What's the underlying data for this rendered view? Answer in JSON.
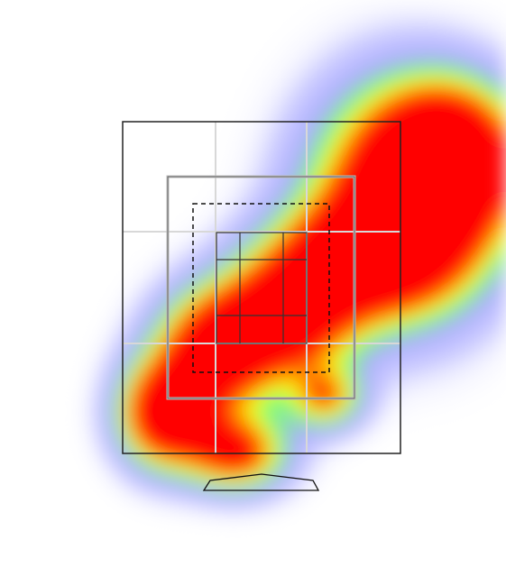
{
  "chart_data": {
    "type": "heatmap",
    "title": "",
    "xlabel": "",
    "ylabel": "",
    "color_scale": [
      "#ffffff",
      "#b8b8ff",
      "#7cff7c",
      "#ffff00",
      "#ff8800",
      "#ff0000"
    ],
    "description_of_regions": "strike zone",
    "blobs": [
      {
        "cx": 0.78,
        "cy": 0.55,
        "rx": 0.62,
        "ry": 0.85,
        "w": 1.0
      },
      {
        "cx": 1.05,
        "cy": 0.8,
        "rx": 0.45,
        "ry": 0.55,
        "w": 1.0
      },
      {
        "cx": 0.55,
        "cy": 0.2,
        "rx": 0.55,
        "ry": 0.4,
        "w": 0.85
      },
      {
        "cx": 0.15,
        "cy": -0.15,
        "rx": 0.45,
        "ry": 0.45,
        "w": 0.95
      },
      {
        "cx": -0.25,
        "cy": -0.4,
        "rx": 0.4,
        "ry": 0.45,
        "w": 1.0
      },
      {
        "cx": -0.55,
        "cy": -0.8,
        "rx": 0.3,
        "ry": 0.4,
        "w": 1.0
      },
      {
        "cx": -0.15,
        "cy": -1.05,
        "rx": 0.35,
        "ry": 0.3,
        "w": 0.75
      },
      {
        "cx": 0.35,
        "cy": -0.7,
        "rx": 0.25,
        "ry": 0.25,
        "w": 0.55
      }
    ]
  }
}
